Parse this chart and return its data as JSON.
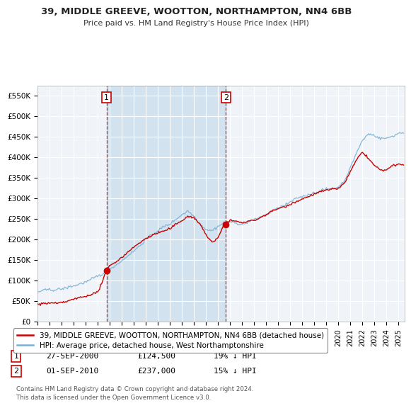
{
  "title": "39, MIDDLE GREEVE, WOOTTON, NORTHAMPTON, NN4 6BB",
  "subtitle": "Price paid vs. HM Land Registry's House Price Index (HPI)",
  "ylabel_ticks": [
    "£0",
    "£50K",
    "£100K",
    "£150K",
    "£200K",
    "£250K",
    "£300K",
    "£350K",
    "£400K",
    "£450K",
    "£500K",
    "£550K"
  ],
  "ytick_values": [
    0,
    50000,
    100000,
    150000,
    200000,
    250000,
    300000,
    350000,
    400000,
    450000,
    500000,
    550000
  ],
  "ylim": [
    0,
    575000
  ],
  "xlim_start": 1995.0,
  "xlim_end": 2025.5,
  "legend_line1": "39, MIDDLE GREEVE, WOOTTON, NORTHAMPTON, NN4 6BB (detached house)",
  "legend_line2": "HPI: Average price, detached house, West Northamptonshire",
  "house_color": "#cc0000",
  "hpi_color": "#7ab0d4",
  "shade_color": "#ddeeff",
  "background_color": "#ffffff",
  "plot_bg_color": "#f0f4f8",
  "grid_color": "#ffffff",
  "sale1_year": 2000.75,
  "sale1_value": 124500,
  "sale2_year": 2010.67,
  "sale2_value": 237000,
  "annotation1_date": "27-SEP-2000",
  "annotation1_price": "£124,500",
  "annotation1_hpi": "19% ↓ HPI",
  "annotation2_date": "01-SEP-2010",
  "annotation2_price": "£237,000",
  "annotation2_hpi": "15% ↓ HPI",
  "footer": "Contains HM Land Registry data © Crown copyright and database right 2024.\nThis data is licensed under the Open Government Licence v3.0."
}
